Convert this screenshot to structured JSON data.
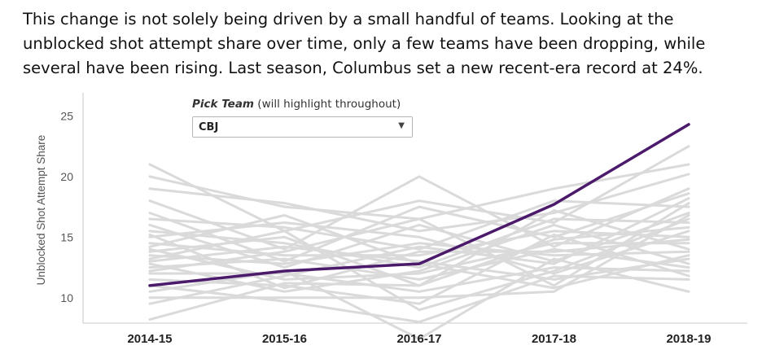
{
  "intro": [
    "This change is not solely being driven by a small handful of teams. Looking at the",
    "unblocked shot attempt share over time, only a few teams have been dropping, while",
    "several have been rising. Last season, Columbus set a new recent-era record at 24%."
  ],
  "picker": {
    "label_bold": "Pick Team",
    "label_rest": " (will highlight throughout)",
    "selected": "CBJ",
    "caret": "▼"
  },
  "colors": {
    "highlight": "#4b1a6b",
    "other": "#dadada",
    "axis": "#555555"
  },
  "chart_data": {
    "type": "line",
    "title": "",
    "xlabel": "",
    "ylabel": "Unblocked Shot Attempt Share",
    "categories": [
      "2014-15",
      "2015-16",
      "2016-17",
      "2017-18",
      "2018-19"
    ],
    "yticks": [
      10,
      15,
      20,
      25
    ],
    "ylim": [
      7.5,
      25.5
    ],
    "grid": false,
    "highlight": {
      "name": "CBJ",
      "values": [
        11.0,
        12.2,
        12.8,
        17.7,
        24.3
      ]
    },
    "series": [
      {
        "values": [
          21.0,
          15.5,
          18.0,
          16.2,
          22.5
        ]
      },
      {
        "values": [
          20.0,
          17.5,
          16.5,
          19.0,
          21.0
        ]
      },
      {
        "values": [
          19.0,
          17.8,
          15.5,
          17.0,
          20.2
        ]
      },
      {
        "values": [
          18.0,
          14.0,
          20.0,
          14.2,
          19.0
        ]
      },
      {
        "values": [
          17.0,
          13.0,
          17.5,
          15.0,
          18.6
        ]
      },
      {
        "values": [
          16.5,
          15.8,
          14.0,
          18.0,
          17.5
        ]
      },
      {
        "values": [
          16.0,
          12.5,
          16.0,
          13.0,
          17.0
        ]
      },
      {
        "values": [
          15.5,
          14.5,
          12.5,
          16.5,
          16.2
        ]
      },
      {
        "values": [
          15.0,
          16.2,
          15.0,
          12.0,
          15.5
        ]
      },
      {
        "values": [
          14.5,
          13.5,
          13.5,
          15.5,
          15.0
        ]
      },
      {
        "values": [
          14.0,
          11.5,
          12.0,
          14.5,
          14.5
        ]
      },
      {
        "values": [
          13.8,
          15.0,
          11.0,
          17.2,
          14.0
        ]
      },
      {
        "values": [
          13.5,
          12.8,
          14.5,
          13.5,
          13.8
        ]
      },
      {
        "values": [
          13.0,
          14.2,
          13.0,
          11.5,
          13.2
        ]
      },
      {
        "values": [
          12.8,
          10.5,
          12.2,
          16.0,
          12.8
        ]
      },
      {
        "values": [
          12.5,
          13.2,
          11.5,
          14.0,
          12.5
        ]
      },
      {
        "values": [
          12.0,
          12.0,
          10.5,
          12.5,
          12.2
        ]
      },
      {
        "values": [
          11.5,
          11.0,
          9.5,
          15.2,
          11.8
        ]
      },
      {
        "values": [
          11.0,
          9.7,
          8.0,
          11.8,
          11.5
        ]
      },
      {
        "values": [
          10.5,
          12.2,
          6.6,
          13.2,
          10.5
        ]
      },
      {
        "values": [
          10.0,
          10.0,
          10.0,
          10.5,
          16.8
        ]
      },
      {
        "values": [
          9.5,
          11.8,
          14.2,
          12.8,
          18.2
        ]
      },
      {
        "values": [
          8.2,
          11.2,
          11.0,
          14.8,
          15.8
        ]
      },
      {
        "values": [
          14.2,
          16.8,
          12.8,
          10.8,
          13.5
        ]
      },
      {
        "values": [
          12.2,
          13.8,
          16.5,
          11.0,
          17.8
        ]
      },
      {
        "values": [
          15.2,
          10.8,
          13.8,
          13.8,
          14.8
        ]
      },
      {
        "values": [
          13.2,
          15.5,
          9.0,
          12.2,
          16.5
        ]
      }
    ]
  }
}
